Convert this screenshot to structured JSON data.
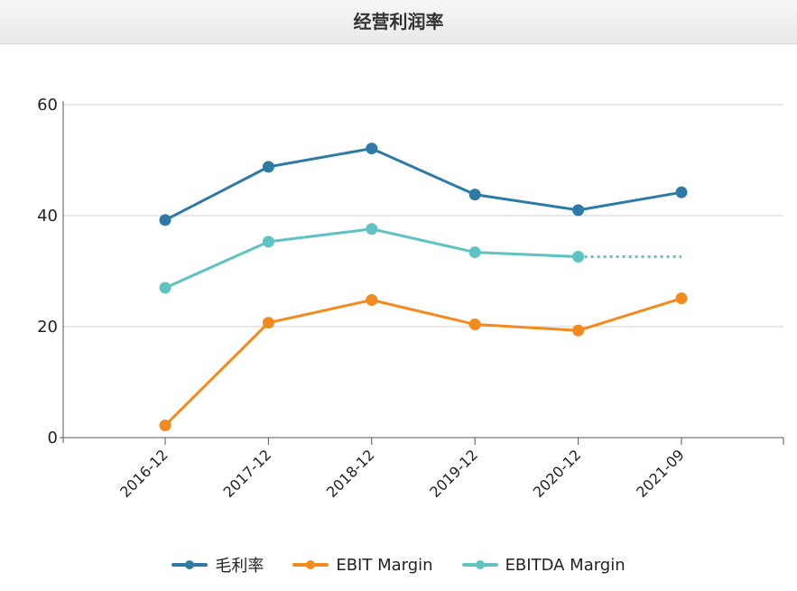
{
  "page": {
    "title": "经营利润率"
  },
  "chart_data": {
    "type": "line",
    "title": "经营利润率",
    "xlabel": "",
    "ylabel": "",
    "categories": [
      "2016-12",
      "2017-12",
      "2018-12",
      "2019-12",
      "2020-12",
      "2021-09"
    ],
    "ylim": [
      0,
      60
    ],
    "yticks": [
      0,
      20,
      40,
      60
    ],
    "grid": true,
    "legend_position": "bottom",
    "series": [
      {
        "name": "毛利率",
        "color": "#2d7aa6",
        "values": [
          39.2,
          48.8,
          52.1,
          43.8,
          41.0,
          44.2
        ]
      },
      {
        "name": "EBIT Margin",
        "color": "#f28a1e",
        "values": [
          2.2,
          20.7,
          24.8,
          20.4,
          19.3,
          25.1
        ]
      },
      {
        "name": "EBITDA Margin",
        "color": "#5fc3c4",
        "values": [
          27.0,
          35.3,
          37.6,
          33.4,
          32.6,
          null
        ],
        "projection": {
          "value": 32.6,
          "style": "dotted"
        }
      }
    ]
  }
}
